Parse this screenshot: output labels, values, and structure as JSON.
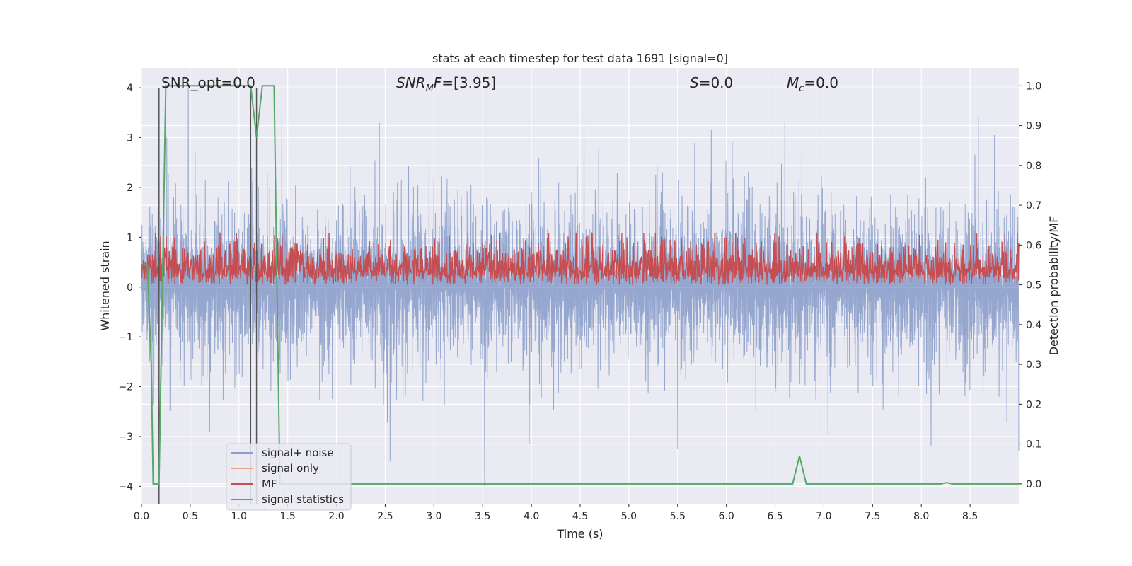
{
  "chart_data": {
    "type": "line",
    "title": "stats at each timestep for test data 1691 [signal=0]",
    "xlabel": "Time (s)",
    "ylabel_left": "Whitened strain",
    "ylabel_right": "Detection probability/MF",
    "xlim": [
      0.0,
      9.0
    ],
    "ylim_left": [
      -4.35,
      4.4
    ],
    "ylim_right": [
      -0.05,
      1.045
    ],
    "x_ticks": [
      0.0,
      0.5,
      1.0,
      1.5,
      2.0,
      2.5,
      3.0,
      3.5,
      4.0,
      4.5,
      5.0,
      5.5,
      6.0,
      6.5,
      7.0,
      7.5,
      8.0,
      8.5
    ],
    "x_tick_labels": [
      "0.0",
      "0.5",
      "1.0",
      "1.5",
      "2.0",
      "2.5",
      "3.0",
      "3.5",
      "4.0",
      "4.5",
      "5.0",
      "5.5",
      "6.0",
      "6.5",
      "7.0",
      "7.5",
      "8.0",
      "8.5"
    ],
    "y_left_ticks": [
      -4,
      -3,
      -2,
      -1,
      0,
      1,
      2,
      3,
      4
    ],
    "y_left_tick_labels": [
      "−4",
      "−3",
      "−2",
      "−1",
      "0",
      "1",
      "2",
      "3",
      "4"
    ],
    "y_right_ticks": [
      0.0,
      0.1,
      0.2,
      0.3,
      0.4,
      0.5,
      0.6,
      0.7,
      0.8,
      0.9,
      1.0
    ],
    "y_right_tick_labels": [
      "0.0",
      "0.1",
      "0.2",
      "0.3",
      "0.4",
      "0.5",
      "0.6",
      "0.7",
      "0.8",
      "0.9",
      "1.0"
    ],
    "grid": true,
    "annotations": [
      "SNR_opt=0.0",
      "SNR_MF=[3.95]",
      "S=0.0",
      "M_c=0.0"
    ],
    "vertical_markers": [
      0.18,
      1.12,
      1.18
    ],
    "legend": {
      "position": "lower-left",
      "entries": [
        "signal+ noise",
        "signal only",
        "MF",
        "signal statistics"
      ]
    },
    "series": [
      {
        "name": "signal+ noise",
        "axis": "left",
        "color": "#8da0cb",
        "kind": "noise",
        "amplitude_typical": 1.2,
        "extremes": [
          [
            0.26,
            3.0
          ],
          [
            0.48,
            4.0
          ],
          [
            0.7,
            -2.9
          ],
          [
            1.44,
            3.5
          ],
          [
            2.55,
            -3.5
          ],
          [
            3.52,
            -4.0
          ],
          [
            4.54,
            3.6
          ],
          [
            5.5,
            -3.25
          ],
          [
            6.6,
            3.3
          ],
          [
            8.1,
            -3.2
          ],
          [
            8.75,
            3.05
          ],
          [
            9.0,
            -3.3
          ]
        ]
      },
      {
        "name": "signal only",
        "axis": "left",
        "color": "#e8a48a",
        "values_x": [
          0.0,
          9.0
        ],
        "values_y": [
          0.0,
          0.0
        ]
      },
      {
        "name": "MF",
        "axis": "right",
        "color": "#c44e52",
        "kind": "noise",
        "baseline": 0.5,
        "amplitude_typical": 0.08,
        "max": 0.63
      },
      {
        "name": "signal statistics",
        "axis": "right",
        "color": "#55a868",
        "x": [
          0.0,
          0.06,
          0.1,
          0.12,
          0.18,
          0.25,
          0.3,
          0.5,
          1.0,
          1.12,
          1.18,
          1.24,
          1.3,
          1.36,
          1.42,
          1.45,
          2.0,
          3.0,
          4.0,
          5.0,
          6.0,
          6.68,
          6.75,
          6.82,
          7.0,
          8.0,
          8.2,
          8.26,
          8.32,
          9.0
        ],
        "y": [
          0.55,
          0.55,
          0.3,
          0.0,
          0.0,
          1.0,
          1.0,
          1.0,
          1.0,
          1.0,
          0.87,
          1.0,
          1.0,
          1.0,
          0.0,
          0.0,
          0.0,
          0.0,
          0.0,
          0.0,
          0.0,
          0.0,
          0.07,
          0.0,
          0.0,
          0.0,
          0.0,
          0.003,
          0.0,
          0.0
        ]
      }
    ]
  }
}
